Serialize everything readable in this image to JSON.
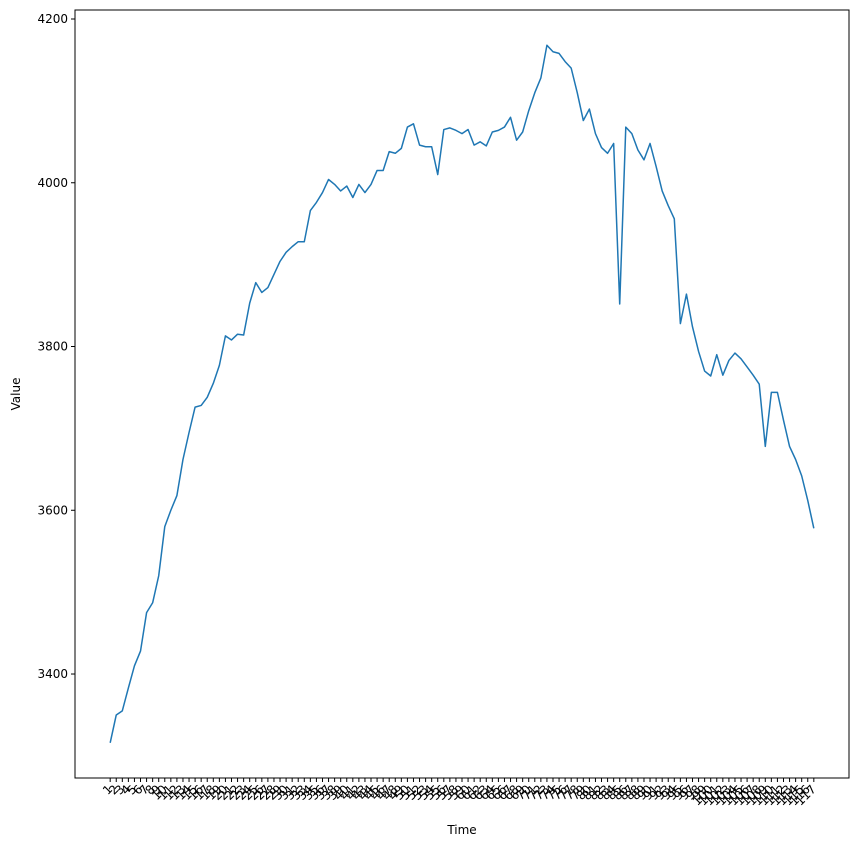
{
  "chart_data": {
    "type": "line",
    "xlabel": "Time",
    "ylabel": "Value",
    "color": "#1f77b4",
    "x": [
      1,
      2,
      3,
      4,
      5,
      6,
      7,
      8,
      9,
      10,
      11,
      12,
      13,
      14,
      15,
      16,
      17,
      18,
      19,
      20,
      21,
      22,
      23,
      24,
      25,
      26,
      27,
      28,
      29,
      30,
      31,
      32,
      33,
      34,
      35,
      36,
      37,
      38,
      39,
      40,
      41,
      42,
      43,
      44,
      45,
      46,
      47,
      48,
      49,
      50,
      51,
      52,
      53,
      54,
      55,
      56,
      57,
      58,
      59,
      60,
      61,
      62,
      63,
      64,
      65,
      66,
      67,
      68,
      69,
      70,
      71,
      72,
      73,
      74,
      75,
      76,
      77,
      78,
      79,
      80,
      81,
      82,
      83,
      84,
      85,
      86,
      87,
      88,
      89,
      90,
      91,
      92,
      93,
      94,
      95,
      96,
      97,
      98,
      99,
      100,
      101,
      102,
      103,
      104,
      105,
      106,
      107,
      108,
      109,
      110,
      111,
      112,
      113,
      114,
      115,
      116,
      117
    ],
    "values": [
      3316,
      3350,
      3355,
      3383,
      3410,
      3428,
      3475,
      3487,
      3520,
      3580,
      3600,
      3618,
      3662,
      3695,
      3726,
      3728,
      3738,
      3755,
      3777,
      3813,
      3808,
      3815,
      3814,
      3853,
      3878,
      3866,
      3872,
      3888,
      3904,
      3915,
      3922,
      3928,
      3928,
      3966,
      3976,
      3988,
      4004,
      3998,
      3990,
      3996,
      3982,
      3998,
      3988,
      3998,
      4015,
      4015,
      4038,
      4036,
      4042,
      4068,
      4072,
      4046,
      4044,
      4044,
      4010,
      4065,
      4067,
      4064,
      4060,
      4065,
      4046,
      4050,
      4045,
      4062,
      4064,
      4068,
      4080,
      4052,
      4062,
      4088,
      4110,
      4128,
      4168,
      4160,
      4158,
      4148,
      4140,
      4110,
      4076,
      4090,
      4060,
      4043,
      4036,
      4048,
      3852,
      4068,
      4060,
      4040,
      4028,
      4048,
      4020,
      3990,
      3972,
      3956,
      3828,
      3864,
      3824,
      3794,
      3770,
      3764,
      3790,
      3765,
      3783,
      3792,
      3785,
      3775,
      3765,
      3754,
      3678,
      3744,
      3744,
      3710,
      3678,
      3662,
      3642,
      3612,
      3578
    ],
    "xlim": [
      -4.8,
      122.8
    ],
    "xticks": [
      1,
      2,
      3,
      4,
      5,
      6,
      7,
      8,
      9,
      10,
      11,
      12,
      13,
      14,
      15,
      16,
      17,
      18,
      19,
      20,
      21,
      22,
      23,
      24,
      25,
      26,
      27,
      28,
      29,
      30,
      31,
      32,
      33,
      34,
      35,
      36,
      37,
      38,
      39,
      40,
      41,
      42,
      43,
      44,
      45,
      46,
      47,
      48,
      49,
      50,
      51,
      52,
      53,
      54,
      55,
      56,
      57,
      58,
      59,
      60,
      61,
      62,
      63,
      64,
      65,
      66,
      67,
      68,
      69,
      70,
      71,
      72,
      73,
      74,
      75,
      76,
      77,
      78,
      79,
      80,
      81,
      82,
      83,
      84,
      85,
      86,
      87,
      88,
      89,
      90,
      91,
      92,
      93,
      94,
      95,
      96,
      97,
      98,
      99,
      100,
      101,
      102,
      103,
      104,
      105,
      106,
      107,
      108,
      109,
      110,
      111,
      112,
      113,
      114,
      115,
      116,
      117
    ],
    "ylim": [
      3273,
      4211
    ],
    "yticks": [
      3400,
      3600,
      3800,
      4000,
      4200
    ],
    "grid": false
  }
}
